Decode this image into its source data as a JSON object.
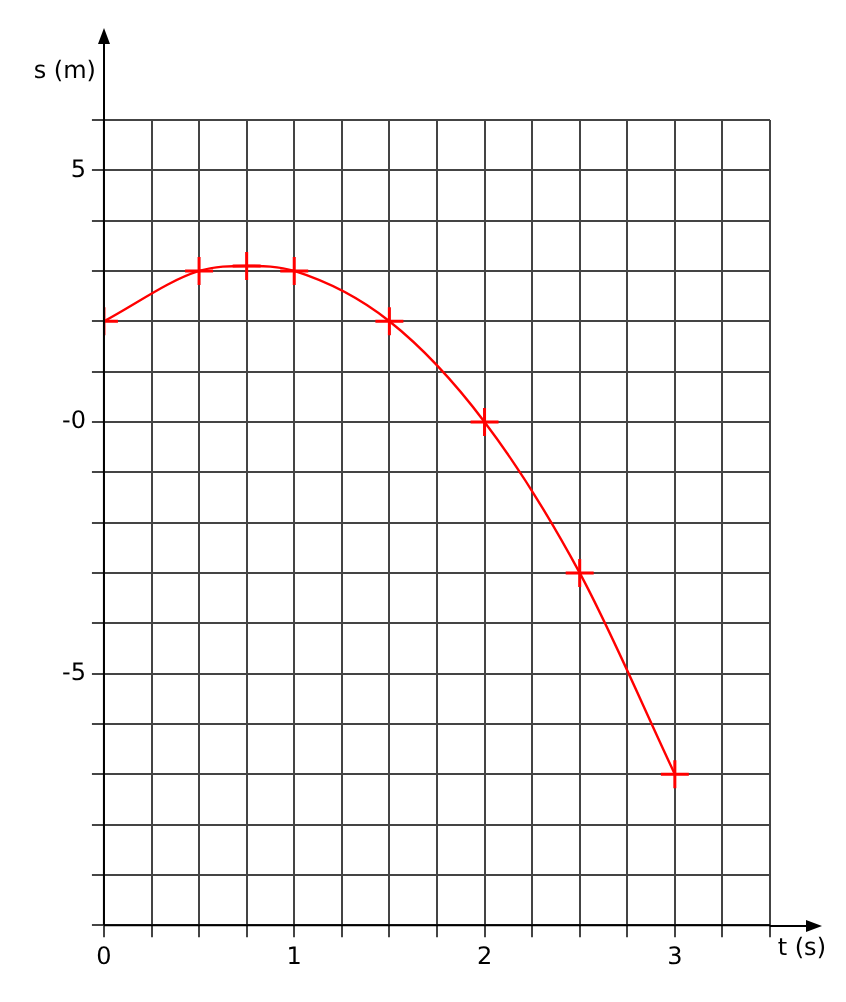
{
  "chart_data": {
    "type": "line",
    "xlabel": "t (s)",
    "ylabel": "s (m)",
    "x": [
      0,
      0.5,
      0.75,
      1,
      1.5,
      2,
      2.5,
      3
    ],
    "series": [
      {
        "color": "#ff0000",
        "values": [
          2,
          3,
          3.1,
          3,
          2,
          0,
          -3,
          -7
        ]
      }
    ],
    "xlim": [
      0,
      3.5
    ],
    "ylim": [
      -10,
      6
    ],
    "xticks": [
      0,
      {
        "value": 0.25,
        "label": null
      },
      {
        "value": 0.5,
        "label": null
      },
      {
        "value": 0.75,
        "label": null
      },
      1,
      {
        "value": 1.25,
        "label": null
      },
      {
        "value": 1.5,
        "label": null
      },
      {
        "value": 1.75,
        "label": null
      },
      2,
      {
        "value": 2.25,
        "label": null
      },
      {
        "value": 2.5,
        "label": null
      },
      {
        "value": 2.75,
        "label": null
      },
      3,
      {
        "value": 3.25,
        "label": null
      },
      {
        "value": 3.5,
        "label": null
      }
    ],
    "yticks": [
      {
        "value": -10,
        "label": null
      },
      {
        "value": -9,
        "label": null
      },
      {
        "value": -8,
        "label": null
      },
      {
        "value": -7,
        "label": null
      },
      {
        "value": -6,
        "label": null
      },
      -5,
      {
        "value": -4,
        "label": null
      },
      {
        "value": -3,
        "label": null
      },
      {
        "value": -2,
        "label": null
      },
      {
        "value": -1,
        "label": null
      },
      {
        "value": 0,
        "label": "-0"
      },
      {
        "value": 1,
        "label": null
      },
      {
        "value": 2,
        "label": null
      },
      {
        "value": 3,
        "label": null
      },
      {
        "value": 4,
        "label": null
      },
      5,
      {
        "value": 6,
        "label": null
      }
    ],
    "grid": true,
    "marker": "cross",
    "legend": false
  }
}
